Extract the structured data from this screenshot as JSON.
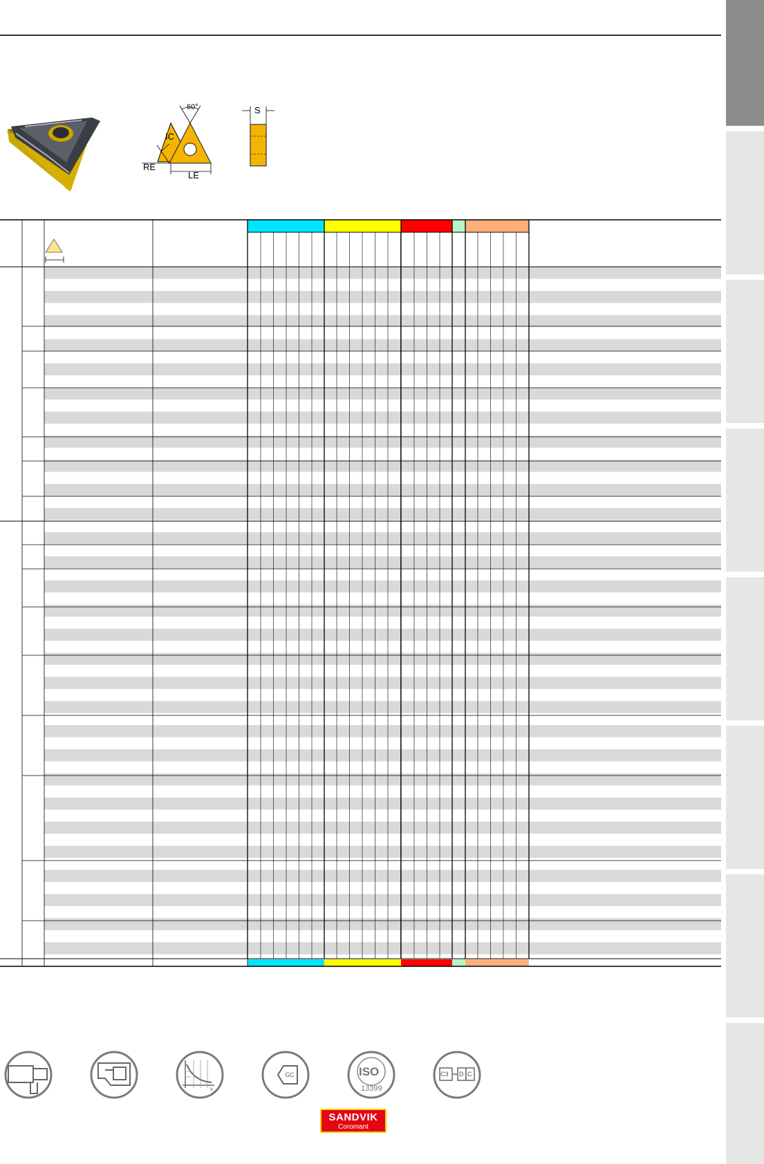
{
  "drawing_labels": {
    "angle": "60°",
    "ic": "IC",
    "re": "RE",
    "le": "LE",
    "s": "S"
  },
  "material_groups": [
    {
      "name": "group-1",
      "color": "#00e5ff"
    },
    {
      "name": "group-2",
      "color": "#ffff00"
    },
    {
      "name": "group-3",
      "color": "#ff0000"
    },
    {
      "name": "group-4",
      "color": "#b6f5c8"
    },
    {
      "name": "group-5",
      "color": "#ffb07a"
    }
  ],
  "footer_icons": [
    "tool-holder-icon",
    "insert-clamp-icon",
    "cutting-data-chart-icon",
    "grade-gc-icon",
    "iso-13399-icon",
    "code-key-icon"
  ],
  "footer_text": {
    "gc": "GC",
    "iso": "ISO",
    "iso_num": "13399",
    "c3": "C3",
    "d": "D",
    "c": "C",
    "vc": "v",
    "vc_sub": "c"
  },
  "logo": {
    "brand": "SANDVIK",
    "sub": "Coromant"
  }
}
